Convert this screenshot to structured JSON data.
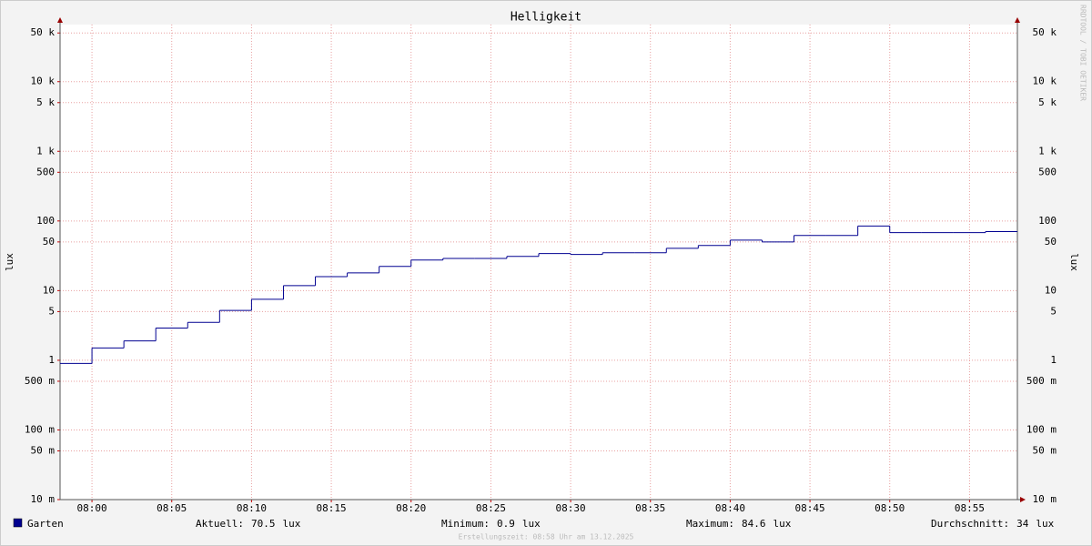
{
  "chart_data": {
    "type": "step",
    "title": "Helligkeit",
    "y_label": "lux",
    "watermark": "RRDTOOL / TOBI OETIKER",
    "footer": "Erstellungszeit: 08:58 Uhr am 13.12.2025",
    "log_scale": true,
    "grid": true,
    "x": [
      "07:58",
      "08:00",
      "08:02",
      "08:04",
      "08:06",
      "08:08",
      "08:10",
      "08:12",
      "08:14",
      "08:16",
      "08:18",
      "08:20",
      "08:22",
      "08:24",
      "08:26",
      "08:28",
      "08:30",
      "08:32",
      "08:34",
      "08:36",
      "08:38",
      "08:40",
      "08:42",
      "08:44",
      "08:46",
      "08:48",
      "08:50",
      "08:52",
      "08:54",
      "08:56"
    ],
    "series": [
      {
        "name": "Garten",
        "color": "#000090",
        "values": [
          0.9,
          1.5,
          1.9,
          2.9,
          3.5,
          5.2,
          7.5,
          11.8,
          15.9,
          18,
          22.3,
          27.5,
          29,
          29,
          31,
          34,
          33,
          35,
          35,
          40.5,
          44.5,
          53,
          50,
          62,
          62,
          84.6,
          68,
          68,
          68,
          70.5
        ]
      }
    ],
    "xlim": [
      "07:58",
      "08:58"
    ],
    "xticks": [
      "08:00",
      "08:05",
      "08:10",
      "08:15",
      "08:20",
      "08:25",
      "08:30",
      "08:35",
      "08:40",
      "08:45",
      "08:50",
      "08:55"
    ],
    "ylim": [
      0.01,
      66000
    ],
    "yticks": [
      {
        "value": 0.01,
        "label": "10 m"
      },
      {
        "value": 0.05,
        "label": "50 m"
      },
      {
        "value": 0.1,
        "label": "100 m"
      },
      {
        "value": 0.5,
        "label": "500 m"
      },
      1,
      5,
      10,
      50,
      100,
      500,
      {
        "value": 1000,
        "label": "1 k"
      },
      {
        "value": 5000,
        "label": "5 k"
      },
      {
        "value": 10000,
        "label": "10 k"
      },
      {
        "value": 50000,
        "label": "50 k"
      }
    ],
    "stats": [
      {
        "label": "Aktuell:",
        "value": 70.5,
        "unit": "lux"
      },
      {
        "label": "Minimum:",
        "value": 0.9,
        "unit": "lux"
      },
      {
        "label": "Maximum:",
        "value": 84.6,
        "unit": "lux"
      },
      {
        "label": "Durchschnitt:",
        "value": 34.0,
        "unit": "lux"
      }
    ]
  }
}
